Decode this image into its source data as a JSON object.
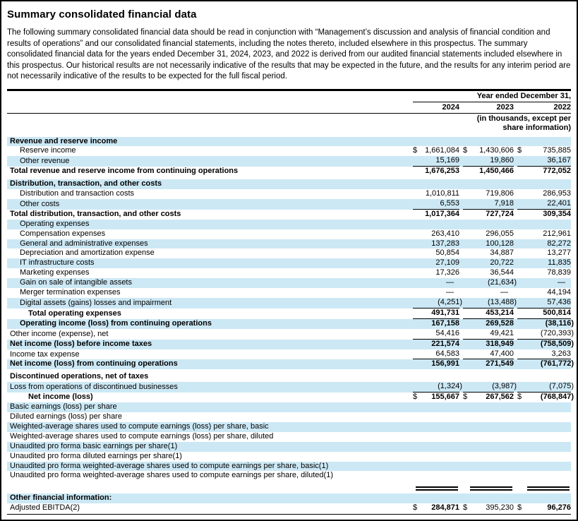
{
  "page": {
    "title": "Summary consolidated financial data",
    "intro": "The following summary consolidated financial data should be read in conjunction with “Management’s discussion and analysis of financial condition and results of operations” and our consolidated financial statements, including the notes thereto, included elsewhere in this prospectus. The summary consolidated financial data for the years ended December 31, 2024, 2023, and 2022 is derived from our audited financial statements included elsewhere in this prospectus. Our historical results are not necessarily indicative of the results that may be expected in the future, and the results for any interim period are not necessarily indicative of the results to be expected for the full fiscal period."
  },
  "table": {
    "colors": {
      "row_shade": "#cce8f5"
    },
    "header": {
      "period_label": "Year ended December 31,",
      "years": [
        "2024",
        "2023",
        "2022"
      ],
      "units_note": "(in thousands, except per share information)"
    },
    "rows": [
      {
        "label": "Revenue and reserve income",
        "indent": 0,
        "bold": true,
        "shaded": true
      },
      {
        "label": "Reserve income",
        "indent": 1,
        "dollar": true,
        "values": [
          "1,661,084",
          "1,430,606",
          "735,885"
        ]
      },
      {
        "label": "Other revenue",
        "indent": 1,
        "shaded": true,
        "values": [
          "15,169",
          "19,860",
          "36,167"
        ],
        "rule": true
      },
      {
        "label": "Total revenue and reserve income from continuing operations",
        "indent": 0,
        "bold": true,
        "values": [
          "1,676,253",
          "1,450,466",
          "772,052"
        ],
        "vb": true
      },
      {
        "label": "Distribution, transaction, and other costs",
        "indent": 0,
        "bold": true,
        "shaded": true,
        "gap": true
      },
      {
        "label": "Distribution and transaction costs",
        "indent": 1,
        "values": [
          "1,010,811",
          "719,806",
          "286,953"
        ]
      },
      {
        "label": "Other costs",
        "indent": 1,
        "shaded": true,
        "values": [
          "6,553",
          "7,918",
          "22,401"
        ],
        "rule": true
      },
      {
        "label": "Total distribution, transaction, and other costs",
        "indent": 0,
        "bold": true,
        "values": [
          "1,017,364",
          "727,724",
          "309,354"
        ],
        "vb": true
      },
      {
        "label": "Operating expenses",
        "indent": 1,
        "shaded": true
      },
      {
        "label": "Compensation expenses",
        "indent": 1,
        "values": [
          "263,410",
          "296,055",
          "212,961"
        ]
      },
      {
        "label": "General and administrative expenses",
        "indent": 1,
        "shaded": true,
        "values": [
          "137,283",
          "100,128",
          "82,272"
        ]
      },
      {
        "label": "Depreciation and amortization expense",
        "indent": 1,
        "values": [
          "50,854",
          "34,887",
          "13,277"
        ]
      },
      {
        "label": "IT infrastructure costs",
        "indent": 1,
        "shaded": true,
        "values": [
          "27,109",
          "20,722",
          "11,835"
        ]
      },
      {
        "label": "Marketing expenses",
        "indent": 1,
        "values": [
          "17,326",
          "36,544",
          "78,839"
        ]
      },
      {
        "label": "Gain on sale of intangible assets",
        "indent": 1,
        "shaded": true,
        "values": [
          "—",
          "(21,634)",
          "—"
        ]
      },
      {
        "label": "Merger termination expenses",
        "indent": 1,
        "values": [
          "—",
          "—",
          "44,194"
        ]
      },
      {
        "label": "Digital assets (gains) losses and impairment",
        "indent": 1,
        "shaded": true,
        "values": [
          "(4,251)",
          "(13,488)",
          "57,436"
        ],
        "rule": true
      },
      {
        "label": "Total operating expenses",
        "indent": 2,
        "bold": true,
        "values": [
          "491,731",
          "453,214",
          "500,814"
        ],
        "vb": true,
        "rule": true
      },
      {
        "label": "Operating income (loss) from continuing operations",
        "indent": 1,
        "bold": true,
        "shaded": true,
        "values": [
          "167,158",
          "269,528",
          "(38,116)"
        ],
        "vb": true
      },
      {
        "label": "Other income (expense), net",
        "indent": 0,
        "values": [
          "54,416",
          "49,421",
          "(720,393)"
        ],
        "rule": true
      },
      {
        "label": "Net income (loss) before income taxes",
        "indent": 0,
        "bold": true,
        "shaded": true,
        "values": [
          "221,574",
          "318,949",
          "(758,509)"
        ],
        "vb": true
      },
      {
        "label": "Income tax expense",
        "indent": 0,
        "values": [
          "64,583",
          "47,400",
          "3,263"
        ],
        "rule": true
      },
      {
        "label": "Net income (loss) from continuing operations",
        "indent": 0,
        "bold": true,
        "shaded": true,
        "values": [
          "156,991",
          "271,549",
          "(761,772)"
        ],
        "vb": true
      },
      {
        "label": "Discontinued operations, net of taxes",
        "indent": 0,
        "bold": true,
        "gap": true
      },
      {
        "label": "Loss from operations of discontinued businesses",
        "indent": 0,
        "shaded": true,
        "values": [
          "(1,324)",
          "(3,987)",
          "(7,075)"
        ],
        "rule": true
      },
      {
        "label": "Net income (loss)",
        "indent": 2,
        "bold": true,
        "dollar": true,
        "values": [
          "155,667",
          "267,562",
          "(768,847)"
        ],
        "vb": true
      },
      {
        "label": "Basic earnings (loss) per share",
        "indent": 0,
        "shaded": true
      },
      {
        "label": "Diluted earnings (loss) per share",
        "indent": 0
      },
      {
        "label": "Weighted-average shares used to compute earnings (loss) per share, basic",
        "indent": 0,
        "shaded": true
      },
      {
        "label": "Weighted-average shares used to compute earnings (loss) per share, diluted",
        "indent": 0
      },
      {
        "label": "Unaudited pro forma basic earnings per share(1)",
        "indent": 0,
        "shaded": true
      },
      {
        "label": "Unaudited pro forma diluted earnings per share(1)",
        "indent": 0
      },
      {
        "label": "Unaudited pro forma weighted-average shares used to compute earnings per share, basic(1)",
        "indent": 0,
        "shaded": true
      },
      {
        "label": "Unaudited pro forma weighted-average shares used to compute earnings per share, diluted(1)",
        "indent": 0
      },
      {
        "type": "double_rule"
      },
      {
        "label": "Other financial information:",
        "indent": 0,
        "bold": true,
        "shaded": true,
        "gap": true
      },
      {
        "label": "Adjusted EBITDA(2)",
        "indent": 0,
        "dollar": true,
        "values": [
          "284,871",
          "395,230",
          "96,276"
        ],
        "vb": [
          true,
          false,
          true
        ]
      }
    ]
  }
}
